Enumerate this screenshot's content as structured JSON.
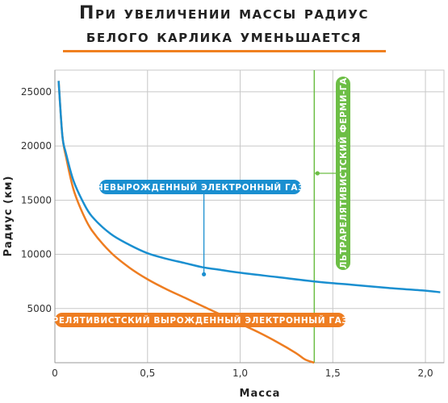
{
  "chart_data": {
    "type": "line",
    "title": [
      "При увеличении массы радиус",
      "белого карлика уменьшается"
    ],
    "xlabel": "Масса",
    "ylabel": "Радиус (км)",
    "xlim": [
      0,
      2.1
    ],
    "ylim": [
      0,
      27000
    ],
    "x_ticks": [
      "0",
      "0,5",
      "1,0",
      "1,5",
      "2,0"
    ],
    "x_tick_values": [
      0,
      0.5,
      1.0,
      1.5,
      2.0
    ],
    "y_ticks": [
      "5000",
      "10000",
      "15000",
      "20000",
      "25000"
    ],
    "y_tick_values": [
      5000,
      10000,
      15000,
      20000,
      25000
    ],
    "grid": true,
    "colors": {
      "blue": "#1a8fd0",
      "orange": "#ee7d21",
      "green": "#6cbe45",
      "grid": "#c8c8c8"
    },
    "series": [
      {
        "name": "невырожденный электронный газ",
        "color": "#1a8fd0",
        "x": [
          0.02,
          0.04,
          0.06,
          0.1,
          0.15,
          0.2,
          0.3,
          0.4,
          0.5,
          0.6,
          0.7,
          0.8,
          0.9,
          1.0,
          1.2,
          1.4,
          1.6,
          1.8,
          2.0,
          2.08
        ],
        "y": [
          26000,
          21000,
          19300,
          16800,
          14900,
          13500,
          11900,
          10900,
          10100,
          9600,
          9200,
          8800,
          8550,
          8300,
          7900,
          7500,
          7200,
          6900,
          6650,
          6500
        ]
      },
      {
        "name": "релятивистский вырожденный электронный газ",
        "color": "#ee7d21",
        "x": [
          0.02,
          0.04,
          0.06,
          0.1,
          0.15,
          0.2,
          0.3,
          0.4,
          0.5,
          0.6,
          0.7,
          0.8,
          0.9,
          1.0,
          1.1,
          1.2,
          1.3,
          1.35,
          1.4
        ],
        "y": [
          26000,
          21000,
          19000,
          16000,
          13800,
          12200,
          10200,
          8800,
          7700,
          6800,
          6000,
          5200,
          4400,
          3600,
          2800,
          1900,
          900,
          300,
          0
        ]
      }
    ],
    "vertical_line": {
      "x": 1.4,
      "label": "ультрарелятивистский ферми-газ",
      "color": "#6cbe45"
    },
    "annotations": [
      {
        "text": "невырожденный электронный газ",
        "series": 0,
        "point": [
          0.8,
          9500
        ]
      },
      {
        "text": "релятивистский вырожденный электронный газ",
        "series": 1,
        "point": [
          0.78,
          5000
        ]
      },
      {
        "text": "ультрарелятивистский ферми-газ",
        "series": 2,
        "point": [
          1.4,
          16800
        ]
      }
    ]
  }
}
